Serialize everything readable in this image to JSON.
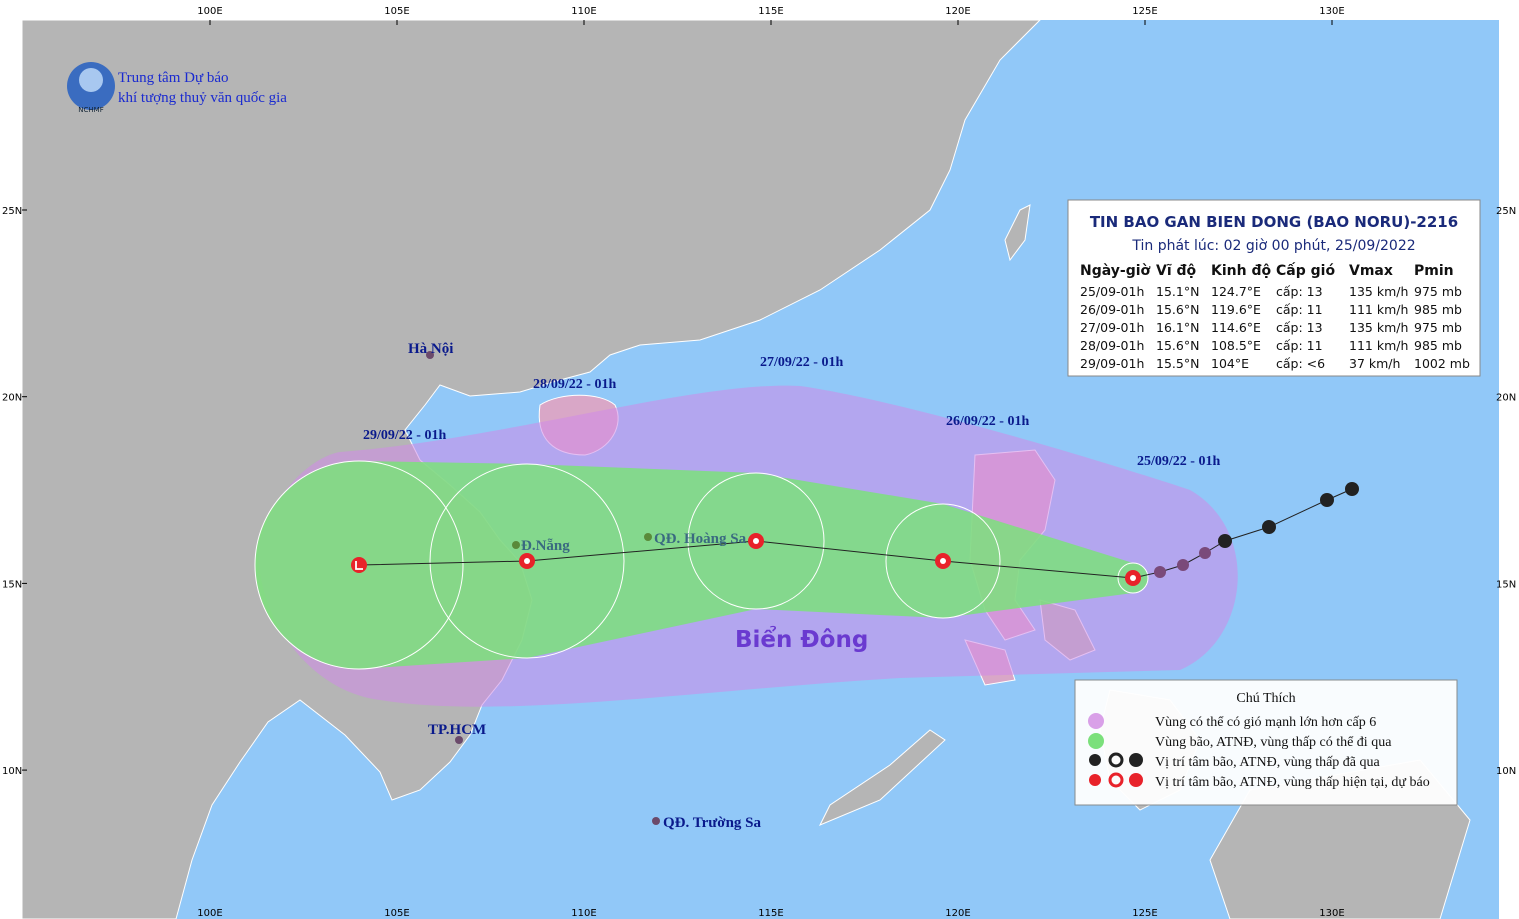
{
  "logo": {
    "line1": "Trung tâm Dự báo",
    "line2": "khí tượng thuỷ văn quốc gia",
    "abbr": "NCHMF"
  },
  "longitudes": [
    "100E",
    "105E",
    "110E",
    "115E",
    "120E",
    "125E",
    "130E"
  ],
  "latitudes": [
    "25N",
    "20N",
    "15N",
    "10N"
  ],
  "bulletin": {
    "title": "TIN BAO GAN BIEN DONG (BAO NORU)-2216",
    "issued": "Tin phát lúc: 02 giờ 00 phút, 25/09/2022",
    "columns": [
      "Ngày-giờ",
      "Vĩ độ",
      "Kinh độ",
      "Cấp gió",
      "Vmax",
      "Pmin"
    ],
    "rows": [
      [
        "25/09-01h",
        "15.1°N",
        "124.7°E",
        "cấp: 13",
        "135 km/h",
        "975 mb"
      ],
      [
        "26/09-01h",
        "15.6°N",
        "119.6°E",
        "cấp: 11",
        "111 km/h",
        "985 mb"
      ],
      [
        "27/09-01h",
        "16.1°N",
        "114.6°E",
        "cấp: 13",
        "135 km/h",
        "975 mb"
      ],
      [
        "28/09-01h",
        "15.6°N",
        "108.5°E",
        "cấp: 11",
        "111 km/h",
        "985 mb"
      ],
      [
        "29/09-01h",
        "15.5°N",
        "104°E",
        "cấp: <6",
        "37 km/h",
        "1002 mb"
      ]
    ]
  },
  "places": {
    "hanoi": "Hà Nội",
    "danang": "Đ.Nẵng",
    "hoangsa": "QĐ. Hoàng Sa",
    "hcm": "TP.HCM",
    "truongsa": "QĐ. Trường Sa",
    "sea": "Biển Đông"
  },
  "forecast_times": [
    "25/09/22 - 01h",
    "26/09/22 - 01h",
    "27/09/22 - 01h",
    "28/09/22 - 01h",
    "29/09/22 - 01h"
  ],
  "legend": {
    "title": "Chú Thích",
    "items": [
      "Vùng có thể có gió mạnh lớn hơn cấp 6",
      "Vùng bão, ATNĐ, vùng thấp có thể đi qua",
      "Vị trí tâm bão, ATNĐ, vùng thấp đã qua",
      "Vị trí tâm bão, ATNĐ, vùng thấp hiện tại, dự báo"
    ]
  }
}
